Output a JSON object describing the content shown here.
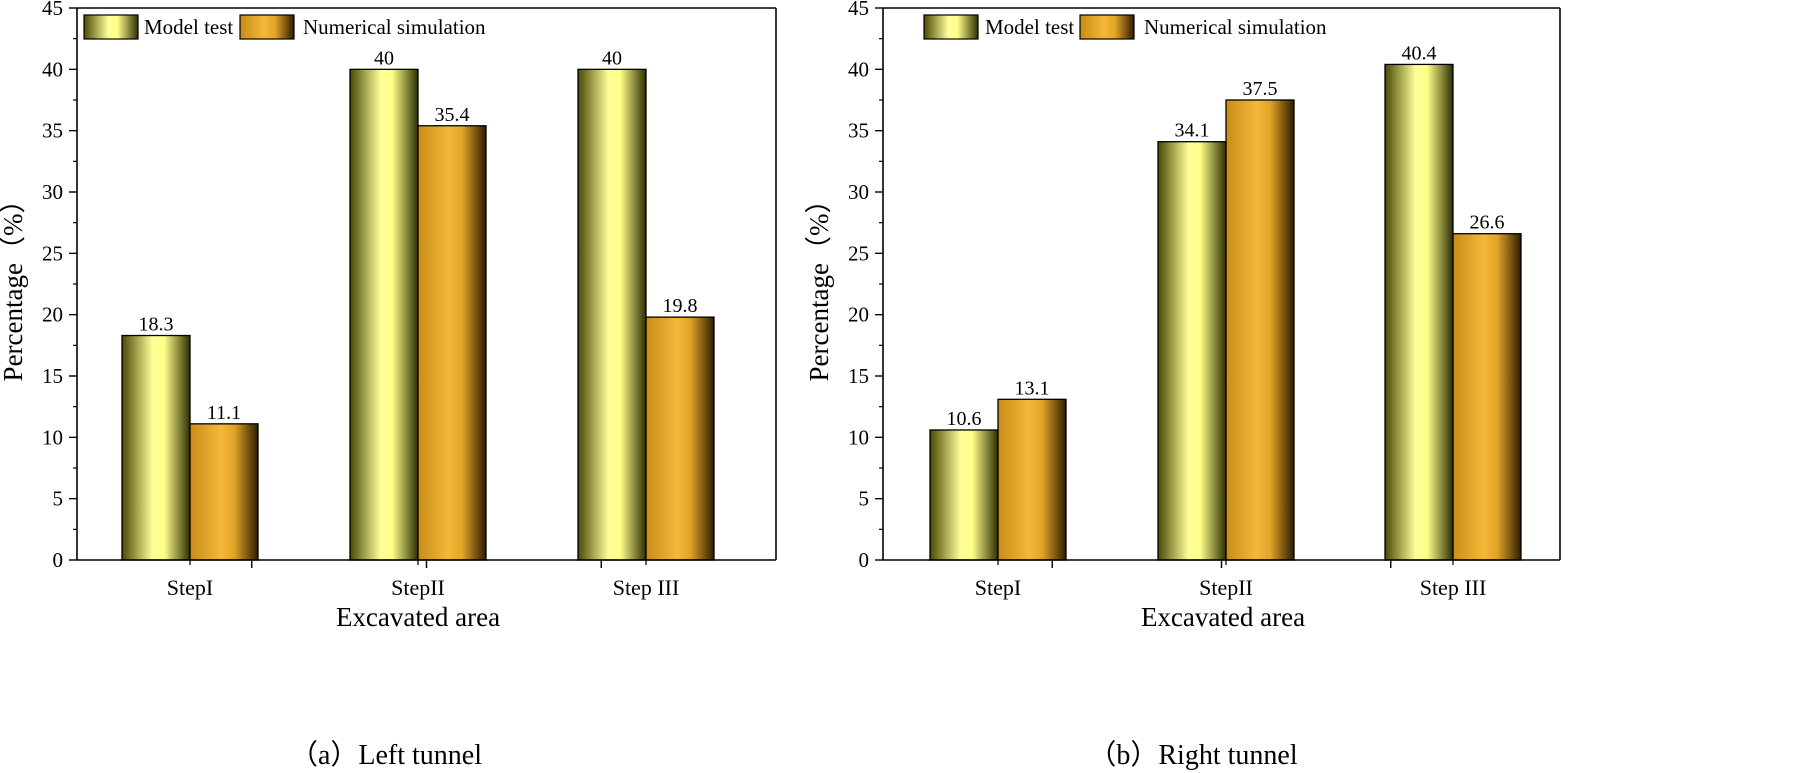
{
  "colors": {
    "model_light": "#ffff99",
    "model_dark": "#5a5a08",
    "numerical_light": "#f0b43c",
    "numerical_dark": "#3a2404",
    "axis": "#000000"
  },
  "chart_data": [
    {
      "type": "bar",
      "panel": "a",
      "caption": "（a）Left tunnel",
      "categories": [
        "StepI",
        "StepII",
        "Step III"
      ],
      "series": [
        {
          "name": "Model test",
          "values": [
            18.3,
            40,
            40
          ],
          "labels": [
            "18.3",
            "40",
            "40"
          ]
        },
        {
          "name": "Numerical simulation",
          "values": [
            11.1,
            35.4,
            19.8
          ],
          "labels": [
            "11.1",
            "35.4",
            "19.8"
          ]
        }
      ],
      "xlabel": "Excavated area",
      "ylabel": "Percentage（%）",
      "ylim": [
        0,
        45
      ],
      "yticks": [
        "0",
        "5",
        "10",
        "15",
        "20",
        "25",
        "30",
        "35",
        "40",
        "45"
      ],
      "legend_position": "top-left",
      "grid": false
    },
    {
      "type": "bar",
      "panel": "b",
      "caption": "（b）Right tunnel",
      "categories": [
        "StepI",
        "StepII",
        "Step III"
      ],
      "series": [
        {
          "name": "Model test",
          "values": [
            10.6,
            34.1,
            40.4
          ],
          "labels": [
            "10.6",
            "34.1",
            "40.4"
          ]
        },
        {
          "name": "Numerical simulation",
          "values": [
            13.1,
            37.5,
            26.6
          ],
          "labels": [
            "13.1",
            "37.5",
            "26.6"
          ]
        }
      ],
      "xlabel": "Excavated area",
      "ylabel": "Percentage（%）",
      "ylim": [
        0,
        45
      ],
      "yticks": [
        "0",
        "5",
        "10",
        "15",
        "20",
        "25",
        "30",
        "35",
        "40",
        "45"
      ],
      "legend_position": "top-left",
      "grid": false
    }
  ]
}
